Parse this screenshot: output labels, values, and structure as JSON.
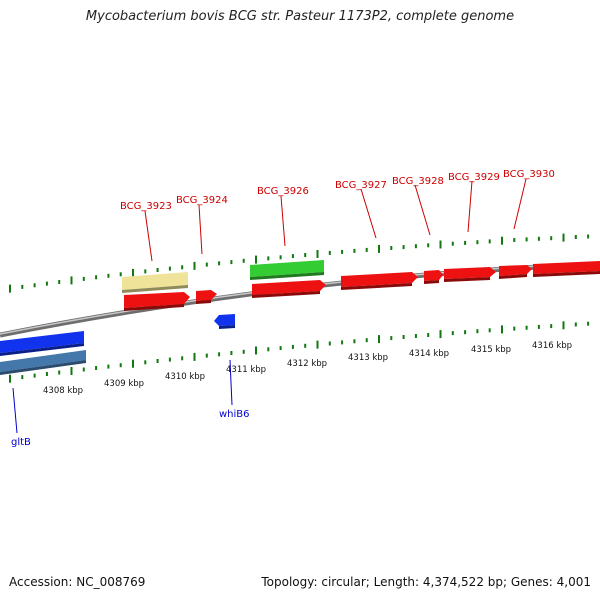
{
  "title": "Mycobacterium bovis BCG str. Pasteur 1173P2, complete genome",
  "footer": {
    "accession": "Accession: NC_008769",
    "topology": "Topology: circular; Length: 4,374,522 bp; Genes: 4,001"
  },
  "colors": {
    "gene_label_forward": "#cc0000",
    "gene_label_reverse": "#0000cc",
    "tick": "#117711",
    "backbone": "#888888",
    "cds_red": "#ee1111",
    "cds_blue": "#1133ee",
    "cds_steelblue": "#4477aa",
    "cds_yellow": "#efe39a",
    "cds_green": "#33cc33"
  },
  "scale_labels": [
    "4308 kbp",
    "4309 kbp",
    "4310 kbp",
    "4311 kbp",
    "4312 kbp",
    "4313 kbp",
    "4314 kbp",
    "4315 kbp",
    "4316 kbp"
  ],
  "gene_labels": [
    {
      "name": "BCG_3923",
      "strand": "forward"
    },
    {
      "name": "BCG_3924",
      "strand": "forward"
    },
    {
      "name": "BCG_3926",
      "strand": "forward"
    },
    {
      "name": "BCG_3927",
      "strand": "forward"
    },
    {
      "name": "BCG_3928",
      "strand": "forward"
    },
    {
      "name": "BCG_3929",
      "strand": "forward"
    },
    {
      "name": "BCG_3930",
      "strand": "forward"
    },
    {
      "name": "whiB6",
      "strand": "reverse"
    },
    {
      "name": "gltB",
      "strand": "reverse"
    }
  ]
}
